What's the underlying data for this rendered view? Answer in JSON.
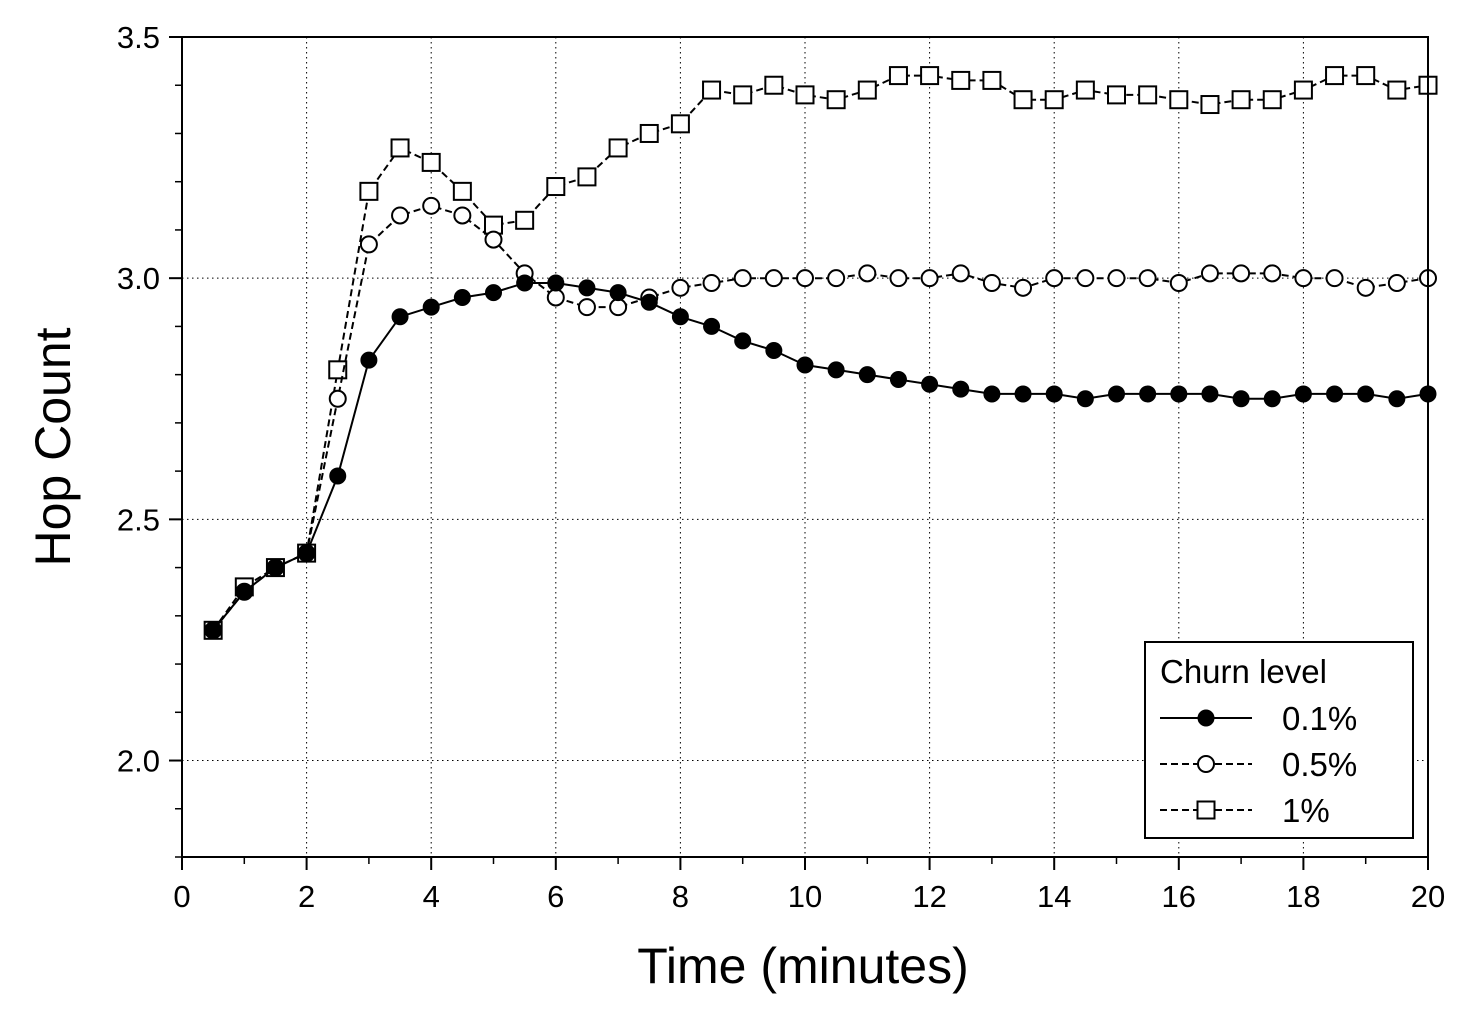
{
  "chart_data": {
    "type": "line",
    "xlabel": "Time (minutes)",
    "ylabel": "Hop Count",
    "xlim": [
      0,
      20
    ],
    "ylim": [
      1.8,
      3.5
    ],
    "xticks": [
      "0",
      "2",
      "4",
      "6",
      "8",
      "10",
      "12",
      "14",
      "16",
      "18",
      "20"
    ],
    "yticks": [
      "2.0",
      "2.5",
      "3.0",
      "3.5"
    ],
    "grid": "dotted, at labeled ticks",
    "legend": {
      "title": "Churn level",
      "position": "bottom-right"
    },
    "x": [
      0.5,
      1,
      1.5,
      2,
      2.5,
      3,
      3.5,
      4,
      4.5,
      5,
      5.5,
      6,
      6.5,
      7,
      7.5,
      8,
      8.5,
      9,
      9.5,
      10,
      10.5,
      11,
      11.5,
      12,
      12.5,
      13,
      13.5,
      14,
      14.5,
      15,
      15.5,
      16,
      16.5,
      17,
      17.5,
      18,
      18.5,
      19,
      19.5,
      20
    ],
    "series": [
      {
        "name": "0.1%",
        "marker": "filled-circle",
        "line": "solid",
        "values": [
          2.27,
          2.35,
          2.4,
          2.43,
          2.59,
          2.83,
          2.92,
          2.94,
          2.96,
          2.97,
          2.99,
          2.99,
          2.98,
          2.97,
          2.95,
          2.92,
          2.9,
          2.87,
          2.85,
          2.82,
          2.81,
          2.8,
          2.79,
          2.78,
          2.77,
          2.76,
          2.76,
          2.76,
          2.75,
          2.76,
          2.76,
          2.76,
          2.76,
          2.75,
          2.75,
          2.76,
          2.76,
          2.76,
          2.75,
          2.76
        ]
      },
      {
        "name": "0.5%",
        "marker": "open-circle",
        "line": "dashed",
        "values": [
          2.27,
          2.35,
          2.4,
          2.43,
          2.75,
          3.07,
          3.13,
          3.15,
          3.13,
          3.08,
          3.01,
          2.96,
          2.94,
          2.94,
          2.96,
          2.98,
          2.99,
          3.0,
          3.0,
          3.0,
          3.0,
          3.01,
          3.0,
          3.0,
          3.01,
          2.99,
          2.98,
          3.0,
          3.0,
          3.0,
          3.0,
          2.99,
          3.01,
          3.01,
          3.01,
          3.0,
          3.0,
          2.98,
          2.99,
          3.0
        ]
      },
      {
        "name": "1%",
        "marker": "open-square",
        "line": "dashed",
        "values": [
          2.27,
          2.36,
          2.4,
          2.43,
          2.81,
          3.18,
          3.27,
          3.24,
          3.18,
          3.11,
          3.12,
          3.19,
          3.21,
          3.27,
          3.3,
          3.32,
          3.39,
          3.38,
          3.4,
          3.38,
          3.37,
          3.39,
          3.42,
          3.42,
          3.41,
          3.41,
          3.37,
          3.37,
          3.39,
          3.38,
          3.38,
          3.37,
          3.36,
          3.37,
          3.37,
          3.39,
          3.42,
          3.42,
          3.39,
          3.4
        ]
      }
    ]
  }
}
